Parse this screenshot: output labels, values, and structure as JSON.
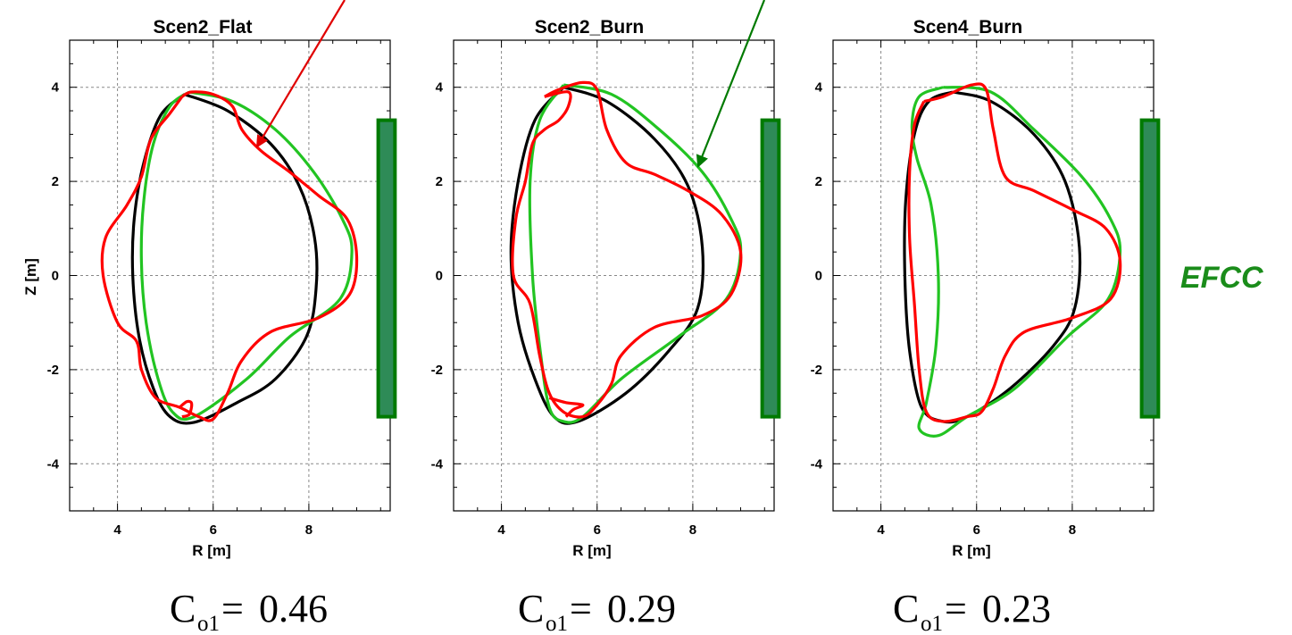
{
  "colors": {
    "case_black": "#000000",
    "case_red": "#ff0000",
    "case_green": "#22c422",
    "coil_fill": "#2e8b57",
    "coil_edge": "#007a00",
    "efcc_text": "#1a8c1a",
    "red_arrow": "#e00000",
    "green_arrow": "#007a00",
    "grid": "#888888"
  },
  "annotation": {
    "label": "EFCC"
  },
  "chart_data": [
    {
      "type": "line",
      "title": "Scen2_Flat",
      "xlabel": "R [m]",
      "ylabel": "Z [m]",
      "xlim": [
        3,
        9.7
      ],
      "ylim": [
        -5,
        5
      ],
      "xticks": [
        4,
        6,
        8
      ],
      "yticks": [
        -4,
        -2,
        0,
        2,
        4
      ],
      "grid": true,
      "coefficient": {
        "symbol": "C",
        "subscript": "o1",
        "value": "0.46"
      },
      "coil": {
        "r_range": [
          9.45,
          9.8
        ],
        "z_range": [
          -3.0,
          3.3
        ]
      },
      "series": [
        {
          "color_key": "case_black",
          "points": [
            [
              5.4,
              3.85
            ],
            [
              6.3,
              3.5
            ],
            [
              7.2,
              2.8
            ],
            [
              7.8,
              1.9
            ],
            [
              8.12,
              0.8
            ],
            [
              8.15,
              -0.3
            ],
            [
              7.95,
              -1.3
            ],
            [
              7.3,
              -2.2
            ],
            [
              6.5,
              -2.7
            ],
            [
              5.6,
              -3.12
            ],
            [
              5.1,
              -3.0
            ],
            [
              4.75,
              -2.4
            ],
            [
              4.45,
              -1.3
            ],
            [
              4.32,
              0
            ],
            [
              4.35,
              1.2
            ],
            [
              4.55,
              2.4
            ],
            [
              4.9,
              3.4
            ],
            [
              5.4,
              3.85
            ]
          ]
        },
        {
          "color_key": "case_green",
          "points": [
            [
              5.5,
              3.9
            ],
            [
              6.4,
              3.7
            ],
            [
              7.3,
              3.1
            ],
            [
              8.1,
              2.2
            ],
            [
              8.7,
              1.2
            ],
            [
              8.9,
              0.5
            ],
            [
              8.65,
              -0.5
            ],
            [
              7.6,
              -1.3
            ],
            [
              6.7,
              -2.2
            ],
            [
              5.6,
              -3.0
            ],
            [
              5.15,
              -2.9
            ],
            [
              4.85,
              -2.2
            ],
            [
              4.6,
              -1.0
            ],
            [
              4.5,
              0.3
            ],
            [
              4.55,
              1.6
            ],
            [
              4.75,
              2.8
            ],
            [
              5.1,
              3.6
            ],
            [
              5.5,
              3.9
            ]
          ]
        },
        {
          "color_key": "case_red",
          "points": [
            [
              5.35,
              3.8
            ],
            [
              5.55,
              3.9
            ],
            [
              6.0,
              3.85
            ],
            [
              6.4,
              3.6
            ],
            [
              6.6,
              3.1
            ],
            [
              7.0,
              2.65
            ],
            [
              7.6,
              2.2
            ],
            [
              8.2,
              1.7
            ],
            [
              8.8,
              1.2
            ],
            [
              9.0,
              0.4
            ],
            [
              8.85,
              -0.4
            ],
            [
              8.2,
              -0.9
            ],
            [
              7.2,
              -1.2
            ],
            [
              6.6,
              -1.8
            ],
            [
              6.3,
              -2.5
            ],
            [
              6.0,
              -3.05
            ],
            [
              5.7,
              -3.0
            ],
            [
              5.3,
              -2.8
            ],
            [
              4.8,
              -2.6
            ],
            [
              4.5,
              -2.0
            ],
            [
              4.4,
              -1.4
            ],
            [
              4.0,
              -1.0
            ],
            [
              3.7,
              0
            ],
            [
              3.75,
              0.8
            ],
            [
              4.2,
              1.5
            ],
            [
              4.5,
              2.1
            ],
            [
              4.7,
              2.9
            ],
            [
              5.1,
              3.45
            ],
            [
              5.35,
              3.8
            ]
          ]
        },
        {
          "color_key": "case_red",
          "points": [
            [
              5.3,
              -2.8
            ],
            [
              5.45,
              -2.68
            ],
            [
              5.55,
              -2.72
            ],
            [
              5.5,
              -2.95
            ],
            [
              5.35,
              -3.0
            ]
          ]
        }
      ]
    },
    {
      "type": "line",
      "title": "Scen2_Burn",
      "xlabel": "R [m]",
      "ylabel": "",
      "xlim": [
        3,
        9.7
      ],
      "ylim": [
        -5,
        5
      ],
      "xticks": [
        4,
        6,
        8
      ],
      "yticks": [
        -4,
        -2,
        0,
        2,
        4
      ],
      "grid": true,
      "coefficient": {
        "symbol": "C",
        "subscript": "o1",
        "value": "0.29"
      },
      "coil": {
        "r_range": [
          9.45,
          9.8
        ],
        "z_range": [
          -3.0,
          3.3
        ]
      },
      "series": [
        {
          "color_key": "case_black",
          "points": [
            [
              5.3,
              4.0
            ],
            [
              6.2,
              3.7
            ],
            [
              7.2,
              2.9
            ],
            [
              7.9,
              1.9
            ],
            [
              8.2,
              0.6
            ],
            [
              8.1,
              -0.7
            ],
            [
              7.5,
              -1.6
            ],
            [
              6.6,
              -2.5
            ],
            [
              5.6,
              -3.1
            ],
            [
              5.1,
              -3.0
            ],
            [
              4.7,
              -2.2
            ],
            [
              4.35,
              -1.0
            ],
            [
              4.2,
              0.5
            ],
            [
              4.35,
              2.0
            ],
            [
              4.7,
              3.3
            ],
            [
              5.3,
              4.0
            ]
          ]
        },
        {
          "color_key": "case_green",
          "points": [
            [
              5.3,
              4.05
            ],
            [
              6.3,
              3.85
            ],
            [
              7.3,
              3.1
            ],
            [
              8.2,
              2.2
            ],
            [
              8.8,
              1.2
            ],
            [
              9.0,
              0.5
            ],
            [
              8.7,
              -0.5
            ],
            [
              7.7,
              -1.3
            ],
            [
              6.5,
              -2.2
            ],
            [
              5.7,
              -3.0
            ],
            [
              5.3,
              -3.1
            ],
            [
              5.0,
              -2.8
            ],
            [
              4.8,
              -1.5
            ],
            [
              4.65,
              0
            ],
            [
              4.6,
              2.0
            ],
            [
              4.8,
              3.3
            ],
            [
              5.3,
              4.05
            ]
          ]
        },
        {
          "color_key": "case_red",
          "points": [
            [
              4.9,
              3.8
            ],
            [
              5.2,
              3.95
            ],
            [
              5.7,
              4.1
            ],
            [
              6.0,
              3.95
            ],
            [
              6.2,
              3.1
            ],
            [
              6.6,
              2.4
            ],
            [
              7.2,
              2.15
            ],
            [
              7.9,
              1.8
            ],
            [
              8.6,
              1.3
            ],
            [
              9.0,
              0.5
            ],
            [
              8.8,
              -0.4
            ],
            [
              8.2,
              -0.85
            ],
            [
              7.2,
              -1.1
            ],
            [
              6.5,
              -1.7
            ],
            [
              6.3,
              -2.3
            ],
            [
              6.0,
              -2.75
            ],
            [
              5.7,
              -3.0
            ],
            [
              5.3,
              -2.9
            ],
            [
              5.0,
              -2.5
            ],
            [
              4.8,
              -1.7
            ],
            [
              4.6,
              -0.6
            ],
            [
              4.25,
              0
            ],
            [
              4.3,
              1.2
            ],
            [
              4.5,
              2.0
            ],
            [
              4.65,
              2.8
            ],
            [
              4.9,
              3.1
            ],
            [
              5.2,
              3.3
            ],
            [
              5.4,
              3.6
            ],
            [
              5.4,
              3.9
            ],
            [
              4.9,
              3.8
            ]
          ]
        },
        {
          "color_key": "case_red",
          "points": [
            [
              5.0,
              -2.6
            ],
            [
              5.35,
              -2.7
            ],
            [
              5.7,
              -2.75
            ],
            [
              5.5,
              -2.85
            ],
            [
              5.35,
              -3.0
            ]
          ]
        }
      ]
    },
    {
      "type": "line",
      "title": "Scen4_Burn",
      "xlabel": "R [m]",
      "ylabel": "",
      "xlim": [
        3,
        9.7
      ],
      "ylim": [
        -5,
        5
      ],
      "xticks": [
        4,
        6,
        8
      ],
      "yticks": [
        -4,
        -2,
        0,
        2,
        4
      ],
      "grid": true,
      "coefficient": {
        "symbol": "C",
        "subscript": "o1",
        "value": "0.23"
      },
      "coil": {
        "r_range": [
          9.45,
          9.8
        ],
        "z_range": [
          -3.0,
          3.3
        ]
      },
      "series": [
        {
          "color_key": "case_black",
          "points": [
            [
              5.5,
              3.9
            ],
            [
              6.3,
              3.7
            ],
            [
              7.2,
              3.0
            ],
            [
              7.85,
              2.0
            ],
            [
              8.15,
              0.6
            ],
            [
              8.05,
              -0.7
            ],
            [
              7.6,
              -1.5
            ],
            [
              6.7,
              -2.4
            ],
            [
              5.8,
              -3.0
            ],
            [
              5.3,
              -3.1
            ],
            [
              4.85,
              -2.8
            ],
            [
              4.6,
              -1.6
            ],
            [
              4.5,
              0
            ],
            [
              4.52,
              1.6
            ],
            [
              4.7,
              3.0
            ],
            [
              5.0,
              3.7
            ],
            [
              5.5,
              3.9
            ]
          ]
        },
        {
          "color_key": "case_green",
          "points": [
            [
              5.3,
              4.0
            ],
            [
              6.3,
              3.9
            ],
            [
              7.2,
              3.1
            ],
            [
              8.2,
              2.1
            ],
            [
              8.8,
              1.2
            ],
            [
              9.0,
              0.5
            ],
            [
              8.75,
              -0.5
            ],
            [
              7.9,
              -1.3
            ],
            [
              6.8,
              -2.4
            ],
            [
              5.8,
              -3.0
            ],
            [
              5.2,
              -3.4
            ],
            [
              4.8,
              -3.25
            ],
            [
              4.95,
              -2.7
            ],
            [
              5.15,
              -1.5
            ],
            [
              5.2,
              0
            ],
            [
              5.05,
              1.5
            ],
            [
              4.75,
              2.5
            ],
            [
              4.65,
              3.2
            ],
            [
              4.8,
              3.8
            ],
            [
              5.3,
              4.0
            ]
          ]
        },
        {
          "color_key": "case_red",
          "points": [
            [
              4.9,
              3.7
            ],
            [
              5.3,
              3.8
            ],
            [
              5.9,
              4.05
            ],
            [
              6.2,
              3.95
            ],
            [
              6.35,
              3.1
            ],
            [
              6.6,
              2.1
            ],
            [
              7.2,
              1.8
            ],
            [
              8.0,
              1.4
            ],
            [
              8.7,
              1.0
            ],
            [
              9.0,
              0.3
            ],
            [
              8.8,
              -0.5
            ],
            [
              8.0,
              -0.9
            ],
            [
              7.0,
              -1.2
            ],
            [
              6.6,
              -1.7
            ],
            [
              6.35,
              -2.4
            ],
            [
              6.1,
              -2.9
            ],
            [
              5.8,
              -3.0
            ],
            [
              5.3,
              -3.1
            ],
            [
              4.95,
              -2.9
            ],
            [
              4.8,
              -2.0
            ],
            [
              4.7,
              -0.6
            ],
            [
              4.6,
              0.8
            ],
            [
              4.6,
              2.2
            ],
            [
              4.7,
              3.2
            ],
            [
              4.9,
              3.7
            ]
          ]
        }
      ]
    }
  ]
}
